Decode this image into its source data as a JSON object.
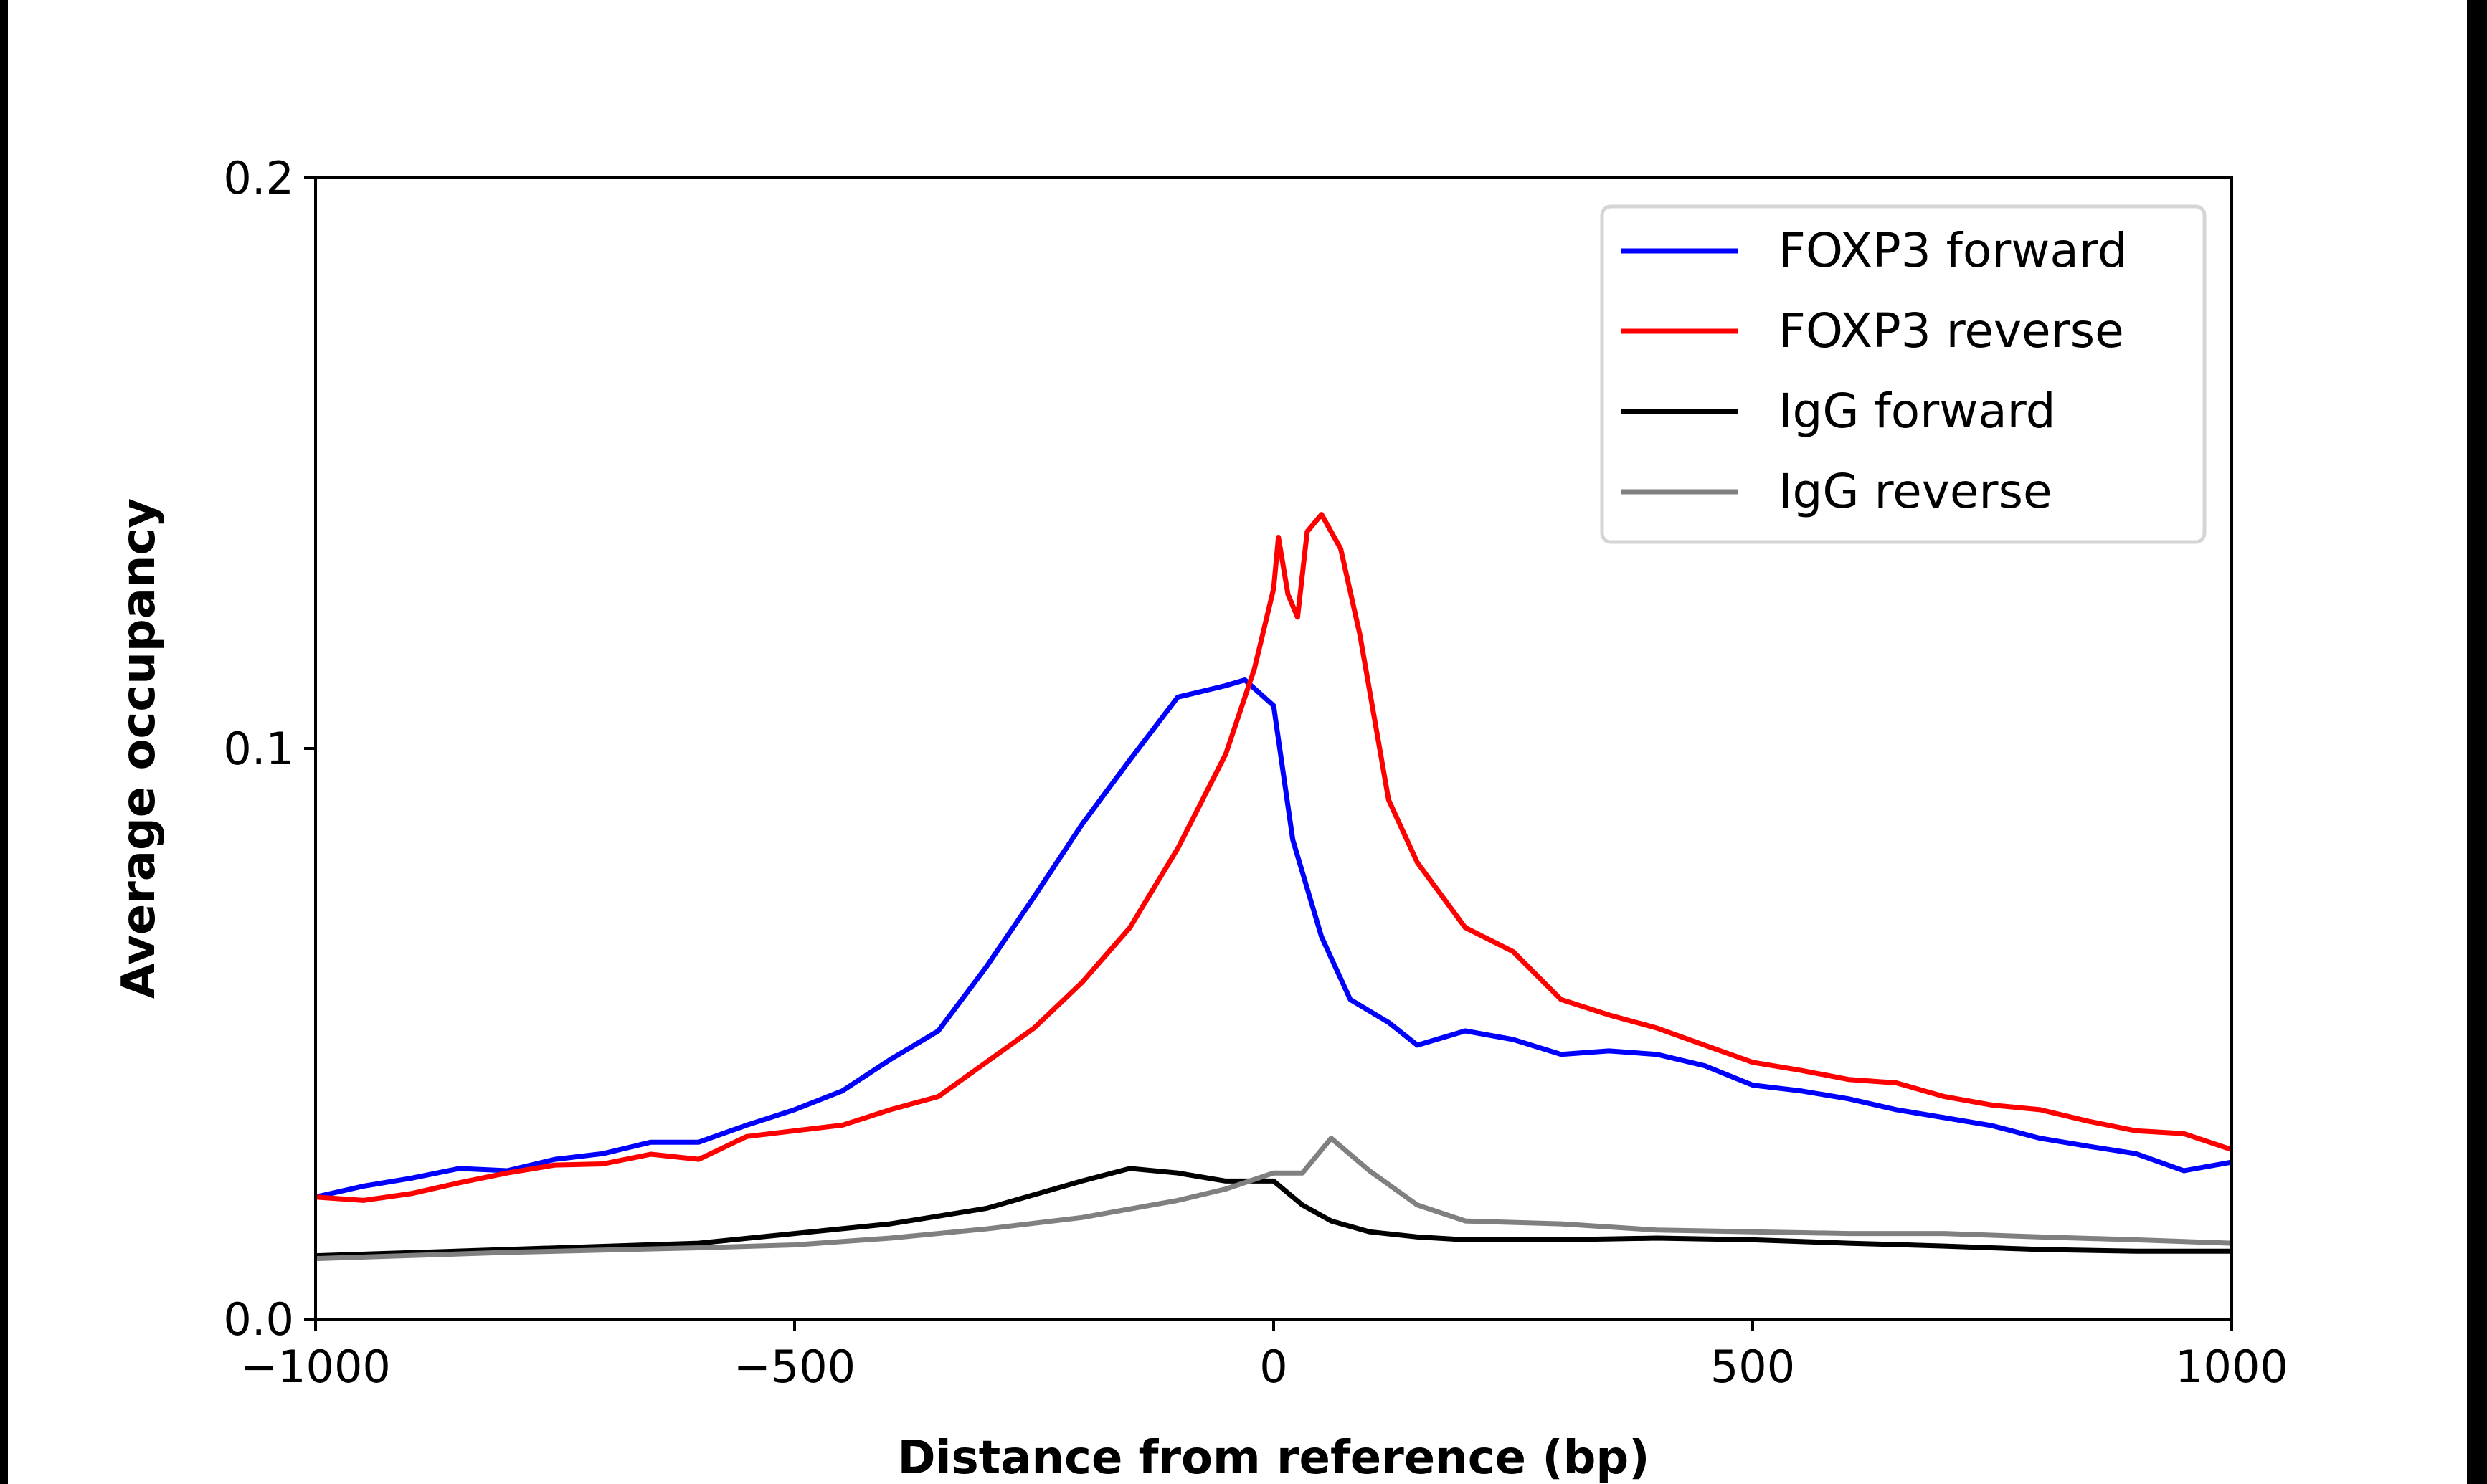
{
  "chart_data": {
    "type": "line",
    "title": "",
    "xlabel": "Distance from reference (bp)",
    "ylabel": "Average occupancy",
    "xlim": [
      -1000,
      1000
    ],
    "ylim": [
      0.0,
      0.2
    ],
    "xticks": [
      -1000,
      -500,
      0,
      500,
      1000
    ],
    "xtick_labels": [
      "−1000",
      "−500",
      "0",
      "500",
      "1000"
    ],
    "yticks": [
      0.0,
      0.1,
      0.2
    ],
    "ytick_labels": [
      "0.0",
      "0.1",
      "0.2"
    ],
    "grid": false,
    "legend_position": "top-right",
    "series": [
      {
        "name": "FOXP3 forward",
        "color": "#0000ff",
        "x": [
          -1000,
          -950,
          -900,
          -850,
          -800,
          -750,
          -700,
          -650,
          -600,
          -550,
          -500,
          -450,
          -400,
          -350,
          -300,
          -250,
          -200,
          -150,
          -100,
          -50,
          -30,
          0,
          20,
          50,
          80,
          120,
          150,
          200,
          250,
          300,
          350,
          400,
          450,
          500,
          550,
          600,
          650,
          700,
          750,
          800,
          850,
          900,
          950,
          1000
        ],
        "y": [
          0.0214,
          0.0233,
          0.0247,
          0.0264,
          0.026,
          0.028,
          0.029,
          0.031,
          0.031,
          0.034,
          0.0367,
          0.04,
          0.0455,
          0.0505,
          0.0617,
          0.074,
          0.0867,
          0.098,
          0.109,
          0.111,
          0.112,
          0.1075,
          0.084,
          0.067,
          0.056,
          0.052,
          0.048,
          0.0505,
          0.049,
          0.0464,
          0.047,
          0.0464,
          0.0444,
          0.041,
          0.04,
          0.0386,
          0.0367,
          0.0353,
          0.0339,
          0.0317,
          0.0303,
          0.029,
          0.026,
          0.0275
        ]
      },
      {
        "name": "FOXP3 reverse",
        "color": "#ff0000",
        "x": [
          -1000,
          -950,
          -900,
          -850,
          -800,
          -750,
          -700,
          -650,
          -600,
          -550,
          -500,
          -450,
          -400,
          -350,
          -300,
          -250,
          -200,
          -150,
          -100,
          -50,
          -20,
          0,
          5,
          15,
          25,
          35,
          50,
          70,
          90,
          120,
          150,
          200,
          250,
          300,
          350,
          400,
          450,
          500,
          550,
          600,
          650,
          700,
          750,
          800,
          850,
          900,
          950,
          1000
        ],
        "y": [
          0.0214,
          0.0208,
          0.022,
          0.0239,
          0.0256,
          0.027,
          0.0272,
          0.0289,
          0.028,
          0.032,
          0.033,
          0.034,
          0.0367,
          0.039,
          0.045,
          0.051,
          0.059,
          0.0686,
          0.0825,
          0.099,
          0.114,
          0.128,
          0.137,
          0.127,
          0.123,
          0.138,
          0.141,
          0.135,
          0.12,
          0.091,
          0.08,
          0.0686,
          0.0644,
          0.056,
          0.0533,
          0.051,
          0.048,
          0.045,
          0.0436,
          0.042,
          0.0414,
          0.039,
          0.0375,
          0.0367,
          0.0347,
          0.033,
          0.0325,
          0.0297
        ]
      },
      {
        "name": "IgG forward",
        "color": "#000000",
        "x": [
          -1000,
          -800,
          -600,
          -500,
          -400,
          -300,
          -200,
          -150,
          -100,
          -50,
          0,
          30,
          60,
          100,
          150,
          200,
          300,
          400,
          500,
          600,
          700,
          800,
          900,
          1000
        ],
        "y": [
          0.0111,
          0.0122,
          0.0133,
          0.015,
          0.0167,
          0.0194,
          0.0242,
          0.0264,
          0.0256,
          0.0242,
          0.0242,
          0.02,
          0.0172,
          0.0153,
          0.0144,
          0.0139,
          0.0139,
          0.0142,
          0.0139,
          0.0133,
          0.0128,
          0.0122,
          0.0119,
          0.0119
        ]
      },
      {
        "name": "IgG reverse",
        "color": "#808080",
        "x": [
          -1000,
          -800,
          -600,
          -500,
          -400,
          -300,
          -200,
          -100,
          -50,
          0,
          30,
          60,
          100,
          150,
          200,
          300,
          400,
          500,
          600,
          700,
          800,
          900,
          1000
        ],
        "y": [
          0.0106,
          0.0117,
          0.0125,
          0.013,
          0.0142,
          0.0158,
          0.0178,
          0.0208,
          0.0228,
          0.0256,
          0.0256,
          0.0317,
          0.026,
          0.02,
          0.0172,
          0.0167,
          0.0156,
          0.0153,
          0.015,
          0.015,
          0.0144,
          0.0139,
          0.0133
        ]
      }
    ]
  }
}
